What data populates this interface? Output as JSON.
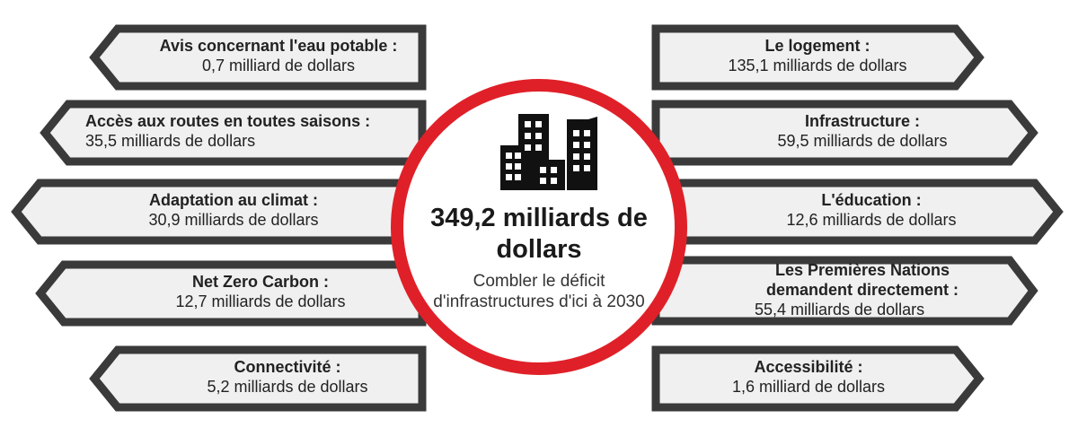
{
  "colors": {
    "banner_fill": "#f0f0f0",
    "banner_border": "#3a3a3a",
    "ring": "#e02028",
    "icon": "#111111",
    "text": "#222222"
  },
  "center": {
    "icon": "buildings-icon",
    "total": "349,2 milliards de dollars",
    "caption": "Combler le déficit d'infrastructures d'ici à 2030"
  },
  "left_items": [
    {
      "title": "Avis concernant l'eau potable :",
      "value": "0,7 milliard de dollars"
    },
    {
      "title": "Accès aux routes en toutes saisons :",
      "value": "35,5 milliards de dollars"
    },
    {
      "title": "Adaptation au climat :",
      "value": "30,9 milliards de dollars"
    },
    {
      "title": "Net Zero Carbon :",
      "value": "12,7 milliards de dollars"
    },
    {
      "title": "Connectivité :",
      "value": "5,2 milliards de dollars"
    }
  ],
  "right_items": [
    {
      "title": "Le logement :",
      "value": "135,1 milliards de dollars"
    },
    {
      "title": "Infrastructure :",
      "value": "59,5 milliards de dollars"
    },
    {
      "title": "L'éducation :",
      "value": "12,6 milliards de dollars"
    },
    {
      "title": "Les Premières Nations demandent directement :",
      "value": "55,4 milliards de dollars"
    },
    {
      "title": "Accessibilité :",
      "value": "1,6 milliard de dollars"
    }
  ]
}
